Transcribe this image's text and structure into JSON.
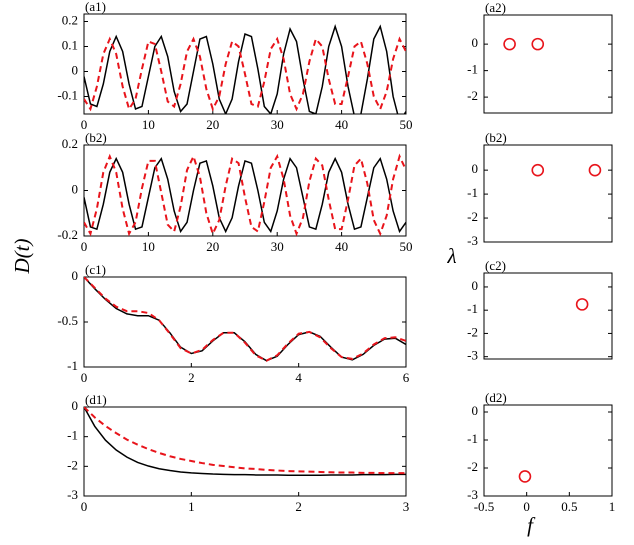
{
  "shared_labels": {
    "y_label_left": "D(t)",
    "y_label_right": "λ",
    "x_label_right": "f"
  },
  "chart_data": [
    {
      "type": "line",
      "label": "(a1)",
      "xlim": [
        0,
        50
      ],
      "xticks": [
        0,
        10,
        20,
        30,
        40,
        50
      ],
      "ylim": [
        -0.17,
        0.23
      ],
      "yticks": [
        -0.1,
        0,
        0.1,
        0.2
      ],
      "x": [
        0,
        1,
        2,
        3,
        4,
        5,
        6,
        7,
        8,
        9,
        10,
        11,
        12,
        13,
        14,
        15,
        16,
        17,
        18,
        19,
        20,
        21,
        22,
        23,
        24,
        25,
        26,
        27,
        28,
        29,
        30,
        31,
        32,
        33,
        34,
        35,
        36,
        37,
        38,
        39,
        40,
        41,
        42,
        43,
        44,
        45,
        46,
        47,
        48,
        49,
        50
      ],
      "series": [
        {
          "color": "#000000",
          "style": "solid",
          "values": [
            -0.02,
            -0.13,
            -0.14,
            -0.05,
            0.08,
            0.14,
            0.08,
            -0.05,
            -0.15,
            -0.14,
            -0.02,
            0.1,
            0.14,
            0.06,
            -0.08,
            -0.16,
            -0.13,
            0.0,
            0.13,
            0.14,
            0.03,
            -0.11,
            -0.17,
            -0.11,
            0.04,
            0.15,
            0.14,
            0.01,
            -0.14,
            -0.17,
            -0.09,
            0.07,
            0.17,
            0.12,
            -0.03,
            -0.16,
            -0.17,
            -0.06,
            0.1,
            0.18,
            0.1,
            -0.06,
            -0.18,
            -0.17,
            -0.03,
            0.13,
            0.18,
            0.08,
            -0.1,
            -0.2,
            -0.16
          ]
        },
        {
          "color": "#e8141b",
          "style": "dashed",
          "values": [
            -0.11,
            -0.15,
            -0.06,
            0.07,
            0.13,
            0.07,
            -0.06,
            -0.15,
            -0.11,
            0.01,
            0.12,
            0.11,
            0,
            -0.12,
            -0.14,
            -0.05,
            0.08,
            0.13,
            0.06,
            -0.07,
            -0.15,
            -0.1,
            0.03,
            0.12,
            0.1,
            -0.01,
            -0.13,
            -0.14,
            -0.04,
            0.09,
            0.13,
            0.05,
            -0.09,
            -0.15,
            -0.09,
            0.04,
            0.13,
            0.1,
            -0.03,
            -0.13,
            -0.13,
            -0.02,
            0.1,
            0.12,
            0.03,
            -0.1,
            -0.15,
            -0.08,
            0.05,
            0.13,
            0.08
          ]
        }
      ]
    },
    {
      "type": "scatter",
      "label": "(a2)",
      "xlim": [
        -0.5,
        1
      ],
      "ylim": [
        -2.6,
        1.1
      ],
      "yticks": [
        -2,
        -1,
        0
      ],
      "color": "#e8141b",
      "x": [
        -0.2,
        0.13
      ],
      "values": [
        0,
        0
      ]
    },
    {
      "type": "line",
      "label": "(b2)",
      "xlim": [
        0,
        50
      ],
      "xticks": [
        0,
        10,
        20,
        30,
        40,
        50
      ],
      "ylim": [
        -0.2,
        0.2
      ],
      "yticks": [
        -0.2,
        0,
        0.2
      ],
      "x": [
        0,
        1,
        2,
        3,
        4,
        5,
        6,
        7,
        8,
        9,
        10,
        11,
        12,
        13,
        14,
        15,
        16,
        17,
        18,
        19,
        20,
        21,
        22,
        23,
        24,
        25,
        26,
        27,
        28,
        29,
        30,
        31,
        32,
        33,
        34,
        35,
        36,
        37,
        38,
        39,
        40,
        41,
        42,
        43,
        44,
        45,
        46,
        47,
        48,
        49,
        50
      ],
      "series": [
        {
          "color": "#000000",
          "style": "solid",
          "values": [
            -0.03,
            -0.16,
            -0.17,
            -0.06,
            0.08,
            0.14,
            0.08,
            -0.06,
            -0.17,
            -0.16,
            -0.03,
            0.1,
            0.14,
            0.05,
            -0.09,
            -0.18,
            -0.14,
            0,
            0.12,
            0.13,
            0.02,
            -0.12,
            -0.18,
            -0.12,
            0.02,
            0.13,
            0.12,
            0,
            -0.14,
            -0.18,
            -0.09,
            0.05,
            0.14,
            0.1,
            -0.03,
            -0.16,
            -0.17,
            -0.06,
            0.08,
            0.14,
            0.08,
            -0.06,
            -0.17,
            -0.16,
            -0.03,
            0.1,
            0.14,
            0.05,
            -0.09,
            -0.18,
            -0.14
          ]
        },
        {
          "color": "#e8141b",
          "style": "dashed",
          "values": [
            -0.14,
            -0.19,
            -0.08,
            0.08,
            0.15,
            0.08,
            -0.08,
            -0.19,
            -0.14,
            0.01,
            0.13,
            0.13,
            -0.01,
            -0.15,
            -0.18,
            -0.07,
            0.09,
            0.15,
            0.06,
            -0.1,
            -0.19,
            -0.13,
            0.02,
            0.14,
            0.12,
            -0.03,
            -0.16,
            -0.18,
            -0.05,
            0.1,
            0.15,
            0.05,
            -0.11,
            -0.19,
            -0.12,
            0.04,
            0.14,
            0.11,
            -0.04,
            -0.17,
            -0.17,
            -0.04,
            0.11,
            0.14,
            0.03,
            -0.13,
            -0.19,
            -0.11,
            0.05,
            0.15,
            0.09
          ]
        }
      ]
    },
    {
      "type": "scatter",
      "label": "(b2)",
      "xlim": [
        -0.5,
        1
      ],
      "ylim": [
        -3,
        1.05
      ],
      "yticks": [
        -3,
        -2,
        -1,
        0
      ],
      "color": "#e8141b",
      "x": [
        0.13,
        0.8
      ],
      "values": [
        0,
        0
      ]
    },
    {
      "type": "line",
      "label": "(c1)",
      "xlim": [
        0,
        6
      ],
      "xticks": [
        0,
        2,
        4,
        6
      ],
      "ylim": [
        -1,
        0
      ],
      "yticks": [
        -1,
        -0.5,
        0
      ],
      "x": [
        0,
        0.2,
        0.4,
        0.6,
        0.8,
        1,
        1.2,
        1.4,
        1.6,
        1.8,
        2,
        2.2,
        2.4,
        2.6,
        2.8,
        3,
        3.2,
        3.4,
        3.6,
        3.8,
        4,
        4.2,
        4.4,
        4.6,
        4.8,
        5,
        5.2,
        5.4,
        5.6,
        5.8,
        6
      ],
      "series": [
        {
          "color": "#000000",
          "style": "solid",
          "values": [
            0,
            -0.13,
            -0.25,
            -0.35,
            -0.41,
            -0.43,
            -0.43,
            -0.48,
            -0.62,
            -0.78,
            -0.85,
            -0.82,
            -0.71,
            -0.62,
            -0.62,
            -0.72,
            -0.86,
            -0.93,
            -0.88,
            -0.75,
            -0.64,
            -0.61,
            -0.66,
            -0.78,
            -0.89,
            -0.92,
            -0.86,
            -0.76,
            -0.69,
            -0.68,
            -0.75
          ]
        },
        {
          "color": "#e8141b",
          "style": "dashed",
          "values": [
            0,
            -0.12,
            -0.24,
            -0.33,
            -0.38,
            -0.38,
            -0.4,
            -0.48,
            -0.63,
            -0.79,
            -0.85,
            -0.81,
            -0.7,
            -0.62,
            -0.62,
            -0.73,
            -0.87,
            -0.93,
            -0.87,
            -0.74,
            -0.63,
            -0.61,
            -0.67,
            -0.79,
            -0.89,
            -0.91,
            -0.85,
            -0.75,
            -0.68,
            -0.67,
            -0.71
          ]
        }
      ]
    },
    {
      "type": "scatter",
      "label": "(c2)",
      "xlim": [
        -0.5,
        1
      ],
      "ylim": [
        -3.1,
        0.6
      ],
      "yticks": [
        -3,
        -2,
        -1,
        0
      ],
      "color": "#e8141b",
      "x": [
        0.65
      ],
      "values": [
        -0.75
      ]
    },
    {
      "type": "line",
      "label": "(d1)",
      "xlim": [
        0,
        3
      ],
      "xticks": [
        0,
        1,
        2,
        3
      ],
      "ylim": [
        -3,
        0
      ],
      "yticks": [
        -3,
        -2,
        -1,
        0
      ],
      "x": [
        0,
        0.1,
        0.2,
        0.3,
        0.4,
        0.5,
        0.6,
        0.7,
        0.8,
        0.9,
        1,
        1.1,
        1.2,
        1.3,
        1.4,
        1.5,
        1.6,
        1.7,
        1.8,
        1.9,
        2,
        2.1,
        2.2,
        2.3,
        2.4,
        2.5,
        2.6,
        2.7,
        2.8,
        2.9,
        3
      ],
      "series": [
        {
          "color": "#000000",
          "style": "solid",
          "values": [
            0,
            -0.65,
            -1.12,
            -1.45,
            -1.69,
            -1.87,
            -1.99,
            -2.08,
            -2.14,
            -2.19,
            -2.22,
            -2.24,
            -2.26,
            -2.27,
            -2.28,
            -2.28,
            -2.29,
            -2.29,
            -2.29,
            -2.3,
            -2.3,
            -2.3,
            -2.3,
            -2.29,
            -2.29,
            -2.29,
            -2.28,
            -2.28,
            -2.28,
            -2.27,
            -2.27
          ]
        },
        {
          "color": "#e8141b",
          "style": "dashed",
          "values": [
            0,
            -0.35,
            -0.64,
            -0.88,
            -1.1,
            -1.27,
            -1.42,
            -1.55,
            -1.66,
            -1.75,
            -1.82,
            -1.89,
            -1.95,
            -1.99,
            -2.03,
            -2.07,
            -2.09,
            -2.12,
            -2.14,
            -2.16,
            -2.17,
            -2.18,
            -2.19,
            -2.2,
            -2.21,
            -2.21,
            -2.22,
            -2.22,
            -2.23,
            -2.23,
            -2.23
          ]
        }
      ]
    },
    {
      "type": "scatter",
      "label": "(d2)",
      "xlim": [
        -0.5,
        1
      ],
      "xticks": [
        -0.5,
        0,
        0.5,
        1
      ],
      "ylim": [
        -3,
        0.25
      ],
      "yticks": [
        -3,
        -2,
        -1,
        0
      ],
      "color": "#e8141b",
      "x": [
        -0.02
      ],
      "values": [
        -2.3
      ]
    }
  ]
}
